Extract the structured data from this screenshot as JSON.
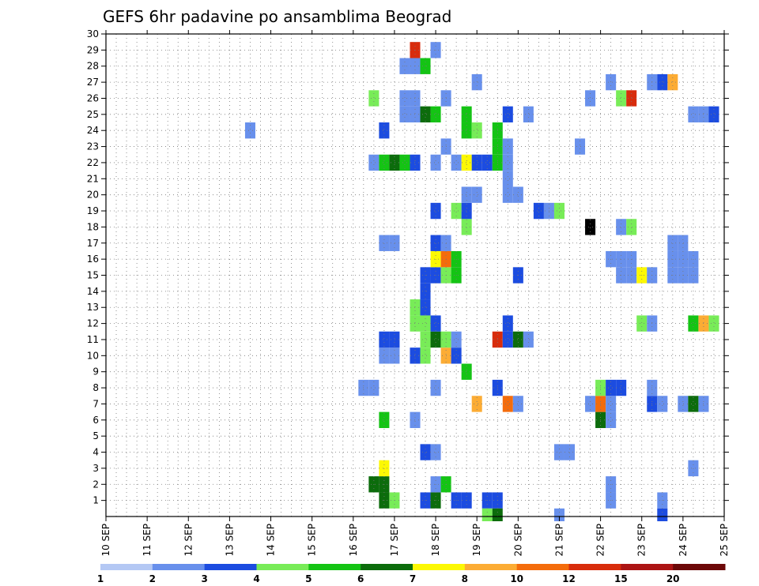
{
  "chart_data": {
    "type": "heatmap",
    "title": "GEFS 6hr padavine po ansamblima Beograd",
    "xlabel": "",
    "ylabel": "",
    "x_tick_labels": [
      "10 SEP",
      "11 SEP",
      "12 SEP",
      "13 SEP",
      "14 SEP",
      "15 SEP",
      "16 SEP",
      "17 SEP",
      "18 SEP",
      "19 SEP",
      "20 SEP",
      "21 SEP",
      "22 SEP",
      "23 SEP",
      "24 SEP",
      "25 SEP"
    ],
    "x_range_days": [
      10,
      25
    ],
    "y_tick_labels": [
      "1",
      "2",
      "3",
      "4",
      "5",
      "6",
      "7",
      "8",
      "9",
      "10",
      "11",
      "12",
      "13",
      "14",
      "15",
      "16",
      "17",
      "18",
      "19",
      "20",
      "21",
      "22",
      "23",
      "24",
      "25",
      "26",
      "27",
      "28",
      "29",
      "30"
    ],
    "y_range": [
      0,
      30
    ],
    "grid": true,
    "colorbar": {
      "placement": "bottom",
      "labels": [
        "1",
        "2",
        "3",
        "4",
        "5",
        "6",
        "7",
        "8",
        "10",
        "12",
        "15",
        "20"
      ],
      "colors": [
        "#b4c8f4",
        "#6890ec",
        "#1c4ce0",
        "#78ec58",
        "#14c414",
        "#0c6c0c",
        "#fcf804",
        "#fcac34",
        "#f46c0c",
        "#d82c0c",
        "#ac1414",
        "#6c0808"
      ]
    },
    "cells": [
      [
        16.75,
        1,
        5
      ],
      [
        17.0,
        1,
        3
      ],
      [
        17.75,
        1,
        2
      ],
      [
        18.0,
        1,
        5
      ],
      [
        18.5,
        1,
        2
      ],
      [
        18.75,
        1,
        2
      ],
      [
        19.25,
        1,
        2
      ],
      [
        19.5,
        1,
        2
      ],
      [
        22.25,
        1,
        1
      ],
      [
        23.5,
        1,
        1
      ],
      [
        16.5,
        2,
        5
      ],
      [
        16.75,
        2,
        5
      ],
      [
        18.0,
        2,
        1
      ],
      [
        18.25,
        2,
        4
      ],
      [
        22.25,
        2,
        1
      ],
      [
        16.75,
        3,
        6
      ],
      [
        24.25,
        3,
        1
      ],
      [
        17.75,
        4,
        2
      ],
      [
        18.0,
        4,
        1
      ],
      [
        21.0,
        4,
        1
      ],
      [
        21.25,
        4,
        1
      ],
      [
        16.75,
        6,
        4
      ],
      [
        17.5,
        6,
        1
      ],
      [
        22.0,
        6,
        5
      ],
      [
        22.25,
        6,
        1
      ],
      [
        19.0,
        7,
        7
      ],
      [
        19.75,
        7,
        8
      ],
      [
        20.0,
        7,
        1
      ],
      [
        21.75,
        7,
        1
      ],
      [
        22.0,
        7,
        8
      ],
      [
        22.25,
        7,
        1
      ],
      [
        23.25,
        7,
        2
      ],
      [
        23.5,
        7,
        1
      ],
      [
        24.0,
        7,
        1
      ],
      [
        24.25,
        7,
        5
      ],
      [
        24.5,
        7,
        1
      ],
      [
        16.25,
        8,
        1
      ],
      [
        16.5,
        8,
        1
      ],
      [
        18.0,
        8,
        1
      ],
      [
        19.5,
        8,
        2
      ],
      [
        22.0,
        8,
        3
      ],
      [
        22.25,
        8,
        2
      ],
      [
        22.5,
        8,
        2
      ],
      [
        23.25,
        8,
        1
      ],
      [
        18.75,
        9,
        4
      ],
      [
        16.75,
        10,
        1
      ],
      [
        17.0,
        10,
        1
      ],
      [
        17.5,
        10,
        2
      ],
      [
        17.75,
        10,
        3
      ],
      [
        18.25,
        10,
        7
      ],
      [
        18.5,
        10,
        2
      ],
      [
        16.75,
        11,
        2
      ],
      [
        17.0,
        11,
        2
      ],
      [
        17.75,
        11,
        3
      ],
      [
        18.0,
        11,
        5
      ],
      [
        18.25,
        11,
        3
      ],
      [
        18.5,
        11,
        1
      ],
      [
        19.5,
        11,
        9
      ],
      [
        19.75,
        11,
        2
      ],
      [
        20.0,
        11,
        5
      ],
      [
        20.25,
        11,
        1
      ],
      [
        17.5,
        12,
        3
      ],
      [
        17.75,
        12,
        3
      ],
      [
        18.0,
        12,
        2
      ],
      [
        19.75,
        12,
        2
      ],
      [
        23.0,
        12,
        3
      ],
      [
        23.25,
        12,
        1
      ],
      [
        24.25,
        12,
        4
      ],
      [
        24.5,
        12,
        7
      ],
      [
        24.75,
        12,
        3
      ],
      [
        17.5,
        13,
        3
      ],
      [
        17.75,
        13,
        2
      ],
      [
        17.75,
        14,
        2
      ],
      [
        17.75,
        15,
        2
      ],
      [
        18.0,
        15,
        2
      ],
      [
        18.25,
        15,
        3
      ],
      [
        18.5,
        15,
        4
      ],
      [
        20.0,
        15,
        2
      ],
      [
        22.5,
        15,
        1
      ],
      [
        22.75,
        15,
        1
      ],
      [
        23.0,
        15,
        6
      ],
      [
        23.25,
        15,
        1
      ],
      [
        23.75,
        15,
        1
      ],
      [
        24.0,
        15,
        1
      ],
      [
        24.25,
        15,
        1
      ],
      [
        18.0,
        16,
        6
      ],
      [
        18.25,
        16,
        8
      ],
      [
        18.5,
        16,
        4
      ],
      [
        22.25,
        16,
        1
      ],
      [
        22.5,
        16,
        1
      ],
      [
        22.75,
        16,
        1
      ],
      [
        23.75,
        16,
        1
      ],
      [
        24.0,
        16,
        1
      ],
      [
        24.25,
        16,
        1
      ],
      [
        16.75,
        17,
        1
      ],
      [
        17.0,
        17,
        1
      ],
      [
        18.0,
        17,
        2
      ],
      [
        18.25,
        17,
        1
      ],
      [
        23.75,
        17,
        1
      ],
      [
        24.0,
        17,
        1
      ],
      [
        18.75,
        18,
        3
      ],
      [
        21.75,
        18,
        12
      ],
      [
        22.5,
        18,
        1
      ],
      [
        22.75,
        18,
        3
      ],
      [
        18.0,
        19,
        2
      ],
      [
        18.5,
        19,
        3
      ],
      [
        18.75,
        19,
        2
      ],
      [
        20.5,
        19,
        2
      ],
      [
        20.75,
        19,
        1
      ],
      [
        21.0,
        19,
        3
      ],
      [
        18.75,
        20,
        1
      ],
      [
        19.0,
        20,
        1
      ],
      [
        19.75,
        20,
        1
      ],
      [
        20.0,
        20,
        1
      ],
      [
        19.75,
        21,
        1
      ],
      [
        16.5,
        22,
        1
      ],
      [
        16.75,
        22,
        4
      ],
      [
        17.0,
        22,
        5
      ],
      [
        17.25,
        22,
        4
      ],
      [
        17.5,
        22,
        2
      ],
      [
        18.0,
        22,
        1
      ],
      [
        18.5,
        22,
        1
      ],
      [
        18.75,
        22,
        6
      ],
      [
        19.0,
        22,
        2
      ],
      [
        19.25,
        22,
        2
      ],
      [
        19.5,
        22,
        4
      ],
      [
        19.75,
        22,
        1
      ],
      [
        18.25,
        23,
        1
      ],
      [
        19.5,
        23,
        4
      ],
      [
        19.75,
        23,
        1
      ],
      [
        21.5,
        23,
        1
      ],
      [
        13.5,
        24,
        1
      ],
      [
        16.75,
        24,
        2
      ],
      [
        18.75,
        24,
        4
      ],
      [
        19.0,
        24,
        3
      ],
      [
        19.5,
        24,
        4
      ],
      [
        17.25,
        25,
        1
      ],
      [
        17.5,
        25,
        1
      ],
      [
        17.75,
        25,
        5
      ],
      [
        18.0,
        25,
        4
      ],
      [
        18.75,
        25,
        4
      ],
      [
        19.75,
        25,
        2
      ],
      [
        20.25,
        25,
        1
      ],
      [
        24.25,
        25,
        1
      ],
      [
        24.5,
        25,
        1
      ],
      [
        24.75,
        25,
        2
      ],
      [
        16.5,
        26,
        3
      ],
      [
        17.25,
        26,
        1
      ],
      [
        17.5,
        26,
        1
      ],
      [
        18.25,
        26,
        1
      ],
      [
        21.75,
        26,
        1
      ],
      [
        22.5,
        26,
        3
      ],
      [
        22.75,
        26,
        9
      ],
      [
        19.0,
        27,
        1
      ],
      [
        22.25,
        27,
        1
      ],
      [
        23.25,
        27,
        1
      ],
      [
        23.5,
        27,
        2
      ],
      [
        23.75,
        27,
        7
      ],
      [
        17.25,
        28,
        1
      ],
      [
        17.5,
        28,
        1
      ],
      [
        17.75,
        28,
        4
      ],
      [
        17.5,
        29,
        9
      ],
      [
        18.0,
        29,
        1
      ],
      [
        19.25,
        0,
        3
      ],
      [
        19.5,
        0,
        5
      ],
      [
        21.0,
        0,
        1
      ],
      [
        23.5,
        0,
        2
      ]
    ]
  }
}
